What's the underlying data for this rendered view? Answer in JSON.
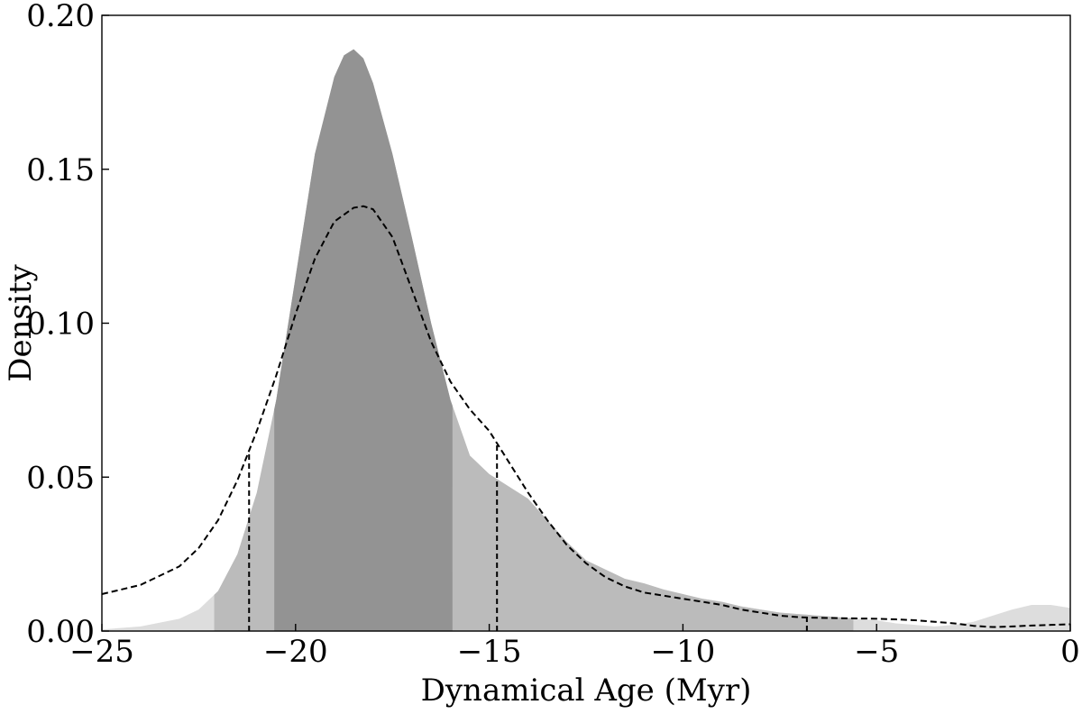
{
  "chart_data": {
    "type": "area",
    "title": "",
    "xlabel": "Dynamical Age (Myr)",
    "ylabel": "Density",
    "xlim": [
      -25,
      0
    ],
    "ylim": [
      0,
      0.2
    ],
    "xticks": [
      -25,
      -20,
      -15,
      -10,
      -5,
      0
    ],
    "xtick_labels": [
      "−25",
      "−20",
      "−15",
      "−10",
      "−5",
      "0"
    ],
    "yticks": [
      0,
      0.05,
      0.1,
      0.15,
      0.2
    ],
    "ytick_labels": [
      "0.00",
      "0.05",
      "0.10",
      "0.15",
      "0.20"
    ],
    "grid": false,
    "legend": "none",
    "series": [
      {
        "style": "filled-density",
        "x": [
          -25,
          -24,
          -23,
          -22.5,
          -22,
          -21.5,
          -21,
          -20.5,
          -20,
          -19.5,
          -19,
          -18.75,
          -18.5,
          -18.25,
          -18,
          -17.5,
          -17,
          -16.5,
          -16,
          -15.5,
          -15,
          -14.5,
          -14,
          -13.5,
          -13,
          -12.5,
          -12,
          -11.5,
          -11,
          -10.5,
          -10,
          -9.5,
          -9,
          -8.5,
          -8,
          -7.5,
          -7,
          -6.5,
          -6,
          -5.5,
          -5,
          -4.5,
          -4,
          -3.5,
          -3,
          -2.5,
          -2,
          -1.5,
          -1,
          -0.5,
          0
        ],
        "y": [
          0.0005,
          0.0015,
          0.004,
          0.007,
          0.013,
          0.025,
          0.045,
          0.075,
          0.115,
          0.155,
          0.18,
          0.187,
          0.189,
          0.186,
          0.178,
          0.155,
          0.128,
          0.1,
          0.075,
          0.057,
          0.051,
          0.047,
          0.043,
          0.036,
          0.029,
          0.023,
          0.02,
          0.017,
          0.0155,
          0.0135,
          0.012,
          0.0105,
          0.0095,
          0.008,
          0.007,
          0.006,
          0.0055,
          0.005,
          0.0045,
          0.004,
          0.0035,
          0.0025,
          0.002,
          0.0015,
          0.002,
          0.003,
          0.005,
          0.007,
          0.0085,
          0.0085,
          0.0075
        ]
      },
      {
        "style": "dashed-line",
        "x": [
          -25,
          -24,
          -23,
          -22.5,
          -22,
          -21.5,
          -21,
          -20.5,
          -20,
          -19.5,
          -19,
          -18.5,
          -18.25,
          -18,
          -17.5,
          -17,
          -16.5,
          -16,
          -15.5,
          -15,
          -14.5,
          -14,
          -13.5,
          -13,
          -12.5,
          -12,
          -11.5,
          -11,
          -10.5,
          -10,
          -9.5,
          -9,
          -8.5,
          -8,
          -7.5,
          -7,
          -6.5,
          -6,
          -5.5,
          -5,
          -4.5,
          -4,
          -3.5,
          -3,
          -2.5,
          -2,
          -1.5,
          -1,
          -0.5,
          0
        ],
        "y": [
          0.012,
          0.015,
          0.021,
          0.027,
          0.036,
          0.049,
          0.065,
          0.083,
          0.103,
          0.121,
          0.133,
          0.1375,
          0.138,
          0.137,
          0.128,
          0.111,
          0.094,
          0.081,
          0.072,
          0.065,
          0.055,
          0.045,
          0.036,
          0.028,
          0.022,
          0.0175,
          0.0145,
          0.0125,
          0.0115,
          0.0105,
          0.0095,
          0.0085,
          0.007,
          0.006,
          0.005,
          0.0045,
          0.0043,
          0.0042,
          0.0041,
          0.004,
          0.0038,
          0.0035,
          0.003,
          0.0025,
          0.0017,
          0.0013,
          0.0015,
          0.0018,
          0.002,
          0.0022
        ]
      }
    ],
    "shaded_regions": [
      {
        "x_range": [
          -25,
          0
        ],
        "color": "#dddddd"
      },
      {
        "x_range": [
          -22.1,
          -5.6
        ],
        "color": "#bbbbbb"
      },
      {
        "x_range": [
          -20.55,
          -15.95
        ],
        "color": "#939393"
      }
    ],
    "vertical_lines": [
      {
        "x": -21.2,
        "style": "dashed"
      },
      {
        "x": -14.8,
        "style": "dashed"
      },
      {
        "x": -6.8,
        "style": "dashed"
      }
    ]
  }
}
